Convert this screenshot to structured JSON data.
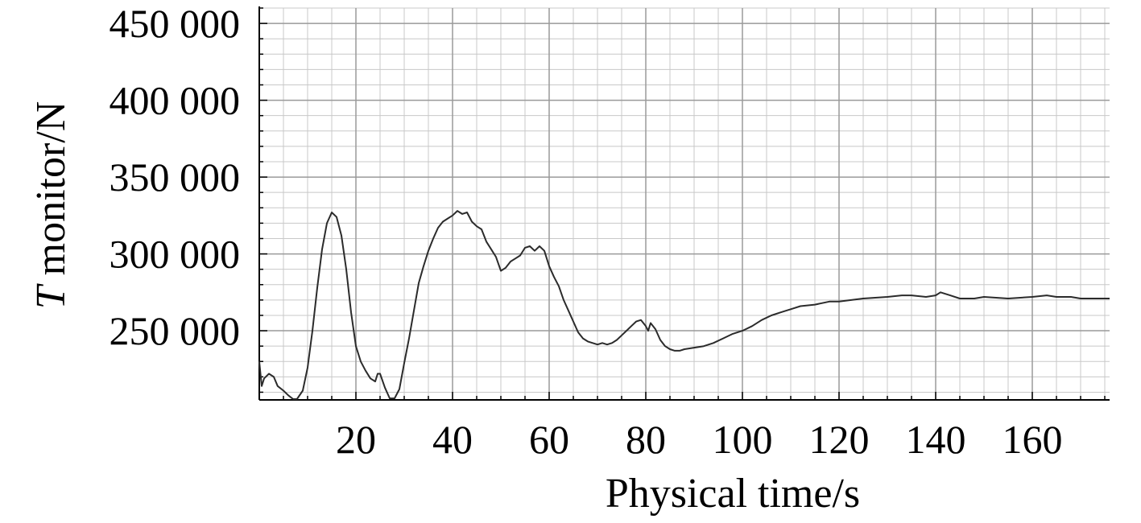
{
  "chart_data": {
    "type": "line",
    "title": "",
    "xlabel": "Physical time/s",
    "ylabel_italic": "T",
    "ylabel_rest": " monitor/N",
    "xlim": [
      0,
      176
    ],
    "ylim": [
      205000,
      460000
    ],
    "x_ticks": [
      20,
      40,
      60,
      80,
      100,
      120,
      140,
      160
    ],
    "x_tick_labels": [
      "20",
      "40",
      "60",
      "80",
      "100",
      "120",
      "140",
      "160"
    ],
    "y_ticks": [
      250000,
      300000,
      350000,
      400000,
      450000
    ],
    "y_tick_labels": [
      "250 000",
      "300 000",
      "350 000",
      "400 000",
      "450 000"
    ],
    "grid": true,
    "legend": "none",
    "series": [
      {
        "color": "#2b2b2b",
        "x": [
          0.0,
          0.5,
          1.0,
          2.0,
          3.0,
          3.8,
          5.0,
          6.0,
          7.0,
          7.8,
          9.0,
          10.0,
          11.0,
          12.0,
          13.0,
          14.0,
          15.0,
          16.0,
          17.0,
          18.0,
          19.0,
          20.0,
          21.0,
          22.0,
          23.0,
          24.0,
          24.5,
          25.0,
          26.0,
          27.0,
          28.0,
          29.0,
          30.0,
          31.0,
          32.0,
          33.0,
          34.0,
          35.0,
          36.0,
          37.0,
          38.0,
          39.0,
          40.0,
          41.0,
          42.0,
          43.0,
          44.0,
          45.0,
          46.0,
          47.0,
          48.0,
          49.0,
          50.0,
          51.0,
          52.0,
          53.0,
          54.0,
          55.0,
          56.0,
          57.0,
          58.0,
          59.0,
          60.0,
          61.0,
          62.0,
          63.0,
          64.0,
          65.0,
          66.0,
          67.0,
          68.0,
          69.0,
          70.0,
          71.0,
          72.0,
          73.0,
          74.0,
          75.0,
          76.0,
          77.0,
          78.0,
          79.0,
          80.0,
          80.5,
          81.0,
          82.0,
          83.0,
          84.0,
          85.0,
          86.0,
          87.0,
          88.0,
          90.0,
          92.0,
          94.0,
          96.0,
          98.0,
          100.0,
          102.0,
          104.0,
          106.0,
          108.0,
          110.0,
          112.0,
          115.0,
          118.0,
          120.0,
          125.0,
          130.0,
          133.0,
          135.0,
          138.0,
          140.0,
          141.0,
          143.0,
          145.0,
          148.0,
          150.0,
          155.0,
          160.0,
          163.0,
          165.0,
          168.0,
          170.0,
          173.0,
          176.0
        ],
        "y": [
          230000,
          214000,
          219000,
          222000,
          220000,
          214000,
          211000,
          208000,
          205500,
          205500,
          211000,
          226000,
          250000,
          278000,
          303000,
          320000,
          327000,
          324000,
          312000,
          290000,
          262000,
          240000,
          230000,
          224000,
          219000,
          217000,
          222000,
          222000,
          213000,
          206000,
          206000,
          212000,
          229000,
          245000,
          263000,
          281000,
          292000,
          302000,
          310000,
          317000,
          321000,
          323000,
          325000,
          328000,
          326000,
          327000,
          321000,
          318000,
          316000,
          308000,
          303000,
          298000,
          289000,
          291000,
          295000,
          297000,
          299000,
          304000,
          305000,
          302000,
          305000,
          302000,
          292000,
          285000,
          279000,
          270000,
          263000,
          256000,
          249000,
          245000,
          243000,
          242000,
          241000,
          242000,
          241000,
          242000,
          244000,
          247000,
          250000,
          253000,
          256000,
          257000,
          253000,
          250000,
          255000,
          251000,
          244000,
          240000,
          238000,
          237000,
          237000,
          238000,
          239000,
          240000,
          242000,
          245000,
          248000,
          250000,
          253000,
          257000,
          260000,
          262000,
          264000,
          266000,
          267000,
          269000,
          269000,
          271000,
          272000,
          273000,
          273000,
          272000,
          273000,
          275000,
          273000,
          271000,
          271000,
          272000,
          271000,
          272000,
          273000,
          272000,
          272000,
          271000,
          271000,
          271000
        ]
      }
    ]
  }
}
